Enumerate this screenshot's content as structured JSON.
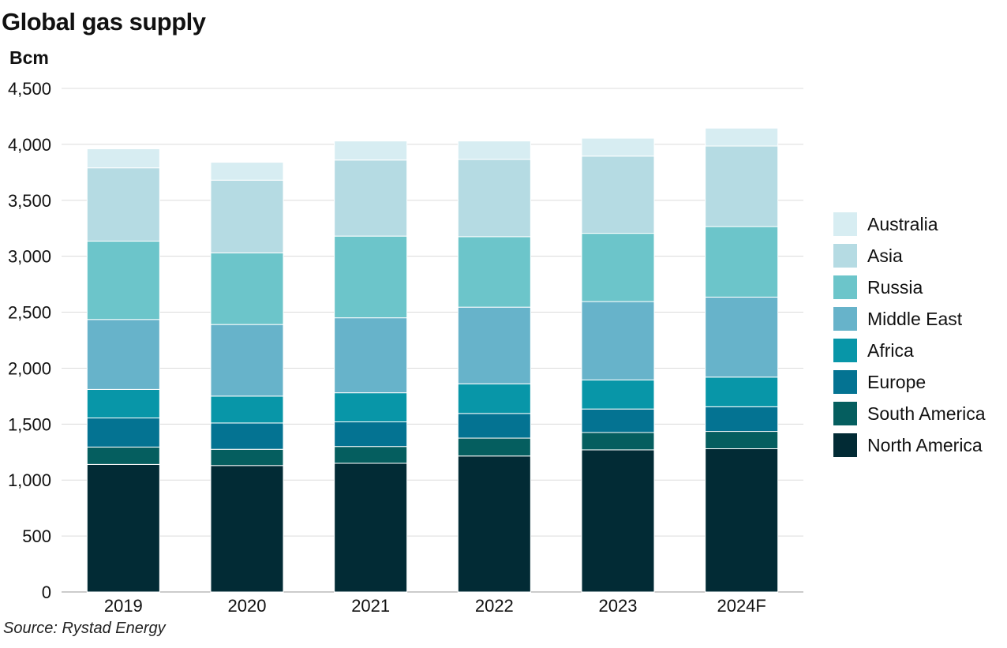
{
  "source": "Source: Rystad Energy",
  "chart_data": {
    "type": "bar",
    "stacked": true,
    "title": "Global gas supply",
    "ylabel": "Bcm",
    "xlabel": "",
    "ylim": [
      0,
      4500
    ],
    "yticks": [
      0,
      500,
      1000,
      1500,
      2000,
      2500,
      3000,
      3500,
      4000,
      4500
    ],
    "ytick_labels": [
      "0",
      "500",
      "1,000",
      "1,500",
      "2,000",
      "2,500",
      "3,000",
      "3,500",
      "4,000",
      "4,500"
    ],
    "grid": true,
    "legend_position": "right",
    "categories": [
      "2019",
      "2020",
      "2021",
      "2022",
      "2023",
      "2024F"
    ],
    "series": [
      {
        "name": "North America",
        "color": "#022b35",
        "values": [
          1140,
          1130,
          1150,
          1215,
          1270,
          1280
        ]
      },
      {
        "name": "South America",
        "color": "#055e5f",
        "values": [
          155,
          145,
          150,
          160,
          155,
          155
        ]
      },
      {
        "name": "Europe",
        "color": "#047392",
        "values": [
          260,
          235,
          220,
          220,
          210,
          220
        ]
      },
      {
        "name": "Africa",
        "color": "#0896a8",
        "values": [
          255,
          240,
          260,
          265,
          260,
          265
        ]
      },
      {
        "name": "Middle East",
        "color": "#67b3ca",
        "values": [
          625,
          640,
          670,
          685,
          700,
          715
        ]
      },
      {
        "name": "Russia",
        "color": "#6cc5ca",
        "values": [
          700,
          640,
          730,
          630,
          610,
          630
        ]
      },
      {
        "name": "Asia",
        "color": "#b5dbe3",
        "values": [
          655,
          650,
          680,
          690,
          690,
          720
        ]
      },
      {
        "name": "Australia",
        "color": "#d7edf2",
        "values": [
          170,
          160,
          170,
          165,
          160,
          160
        ]
      }
    ]
  }
}
